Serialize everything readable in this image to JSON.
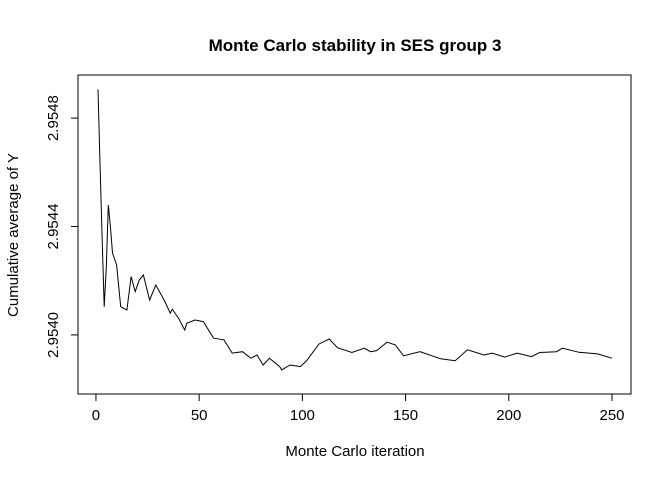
{
  "chart_data": {
    "type": "line",
    "title": "Monte Carlo stability in SES group 3",
    "xlabel": "Monte Carlo iteration",
    "ylabel": "Cumulative average of Y",
    "xlim": [
      -8.7,
      259.2
    ],
    "ylim": [
      2.953782,
      2.954959
    ],
    "x_ticks": [
      0,
      50,
      100,
      150,
      200,
      250
    ],
    "x_tick_labels": [
      "0",
      "50",
      "100",
      "150",
      "200",
      "250"
    ],
    "y_ticks": [
      2.954,
      2.9544,
      2.9548
    ],
    "y_tick_labels": [
      "2.9540",
      "2.9544",
      "2.9548"
    ],
    "grid": false,
    "line_color": "#000000",
    "series": [
      {
        "x": [
          1,
          2,
          3,
          4,
          5,
          6,
          7,
          8,
          10,
          12,
          15,
          17,
          19,
          21,
          23,
          26,
          29,
          33,
          36,
          37,
          40,
          43,
          44,
          48,
          52,
          57,
          62,
          66,
          71,
          75,
          78,
          81,
          84,
          89,
          90,
          94,
          99,
          102,
          108,
          113,
          117,
          124,
          130,
          133,
          136,
          141,
          145,
          149,
          157,
          167,
          174,
          180,
          188,
          192,
          198,
          204,
          211,
          215,
          223,
          226,
          234,
          243,
          250
        ],
        "y": [
          2.954906,
          2.954621,
          2.95435,
          2.954104,
          2.95425,
          2.954479,
          2.9544,
          2.954302,
          2.954258,
          2.954104,
          2.954092,
          2.954215,
          2.95416,
          2.954203,
          2.954221,
          2.954129,
          2.954184,
          2.954129,
          2.95408,
          2.954095,
          2.954062,
          2.954018,
          2.954043,
          2.954055,
          2.954049,
          2.953988,
          2.953982,
          2.953933,
          2.953938,
          2.953914,
          2.953926,
          2.953889,
          2.953914,
          2.953883,
          2.953871,
          2.953889,
          2.953883,
          2.953904,
          2.953966,
          2.953985,
          2.953953,
          2.953935,
          2.953951,
          2.953938,
          2.953942,
          2.953973,
          2.953963,
          2.953923,
          2.953938,
          2.953912,
          2.953905,
          2.953945,
          2.953926,
          2.953933,
          2.953918,
          2.953933,
          2.95392,
          2.953935,
          2.953938,
          2.953951,
          2.953936,
          2.95393,
          2.953914
        ]
      }
    ]
  }
}
